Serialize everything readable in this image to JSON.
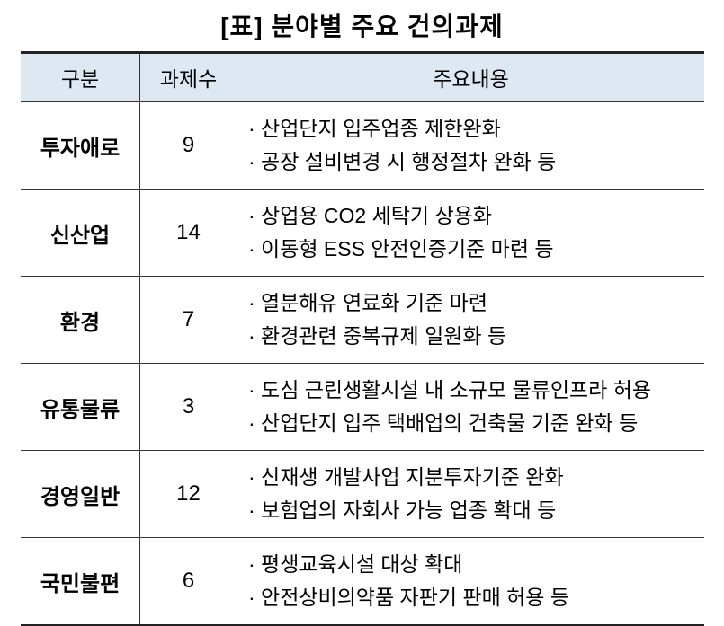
{
  "title": "[표] 분야별 주요 건의과제",
  "headers": [
    "구분",
    "과제수",
    "주요내용"
  ],
  "rows": [
    {
      "category": "투자애로",
      "count": "9",
      "items": [
        "· 산업단지 입주업종 제한완화",
        "· 공장 설비변경 시 행정절차 완화 등"
      ]
    },
    {
      "category": "신산업",
      "count": "14",
      "items": [
        "· 상업용 CO2 세탁기 상용화",
        "· 이동형 ESS 안전인증기준 마련 등"
      ]
    },
    {
      "category": "환경",
      "count": "7",
      "items": [
        "· 열분해유 연료화 기준 마련",
        "· 환경관련 중복규제 일원화 등"
      ]
    },
    {
      "category": "유통물류",
      "count": "3",
      "items": [
        "· 도심 근린생활시설 내 소규모 물류인프라 허용",
        "· 산업단지 입주 택배업의 건축물 기준 완화 등"
      ]
    },
    {
      "category": "경영일반",
      "count": "12",
      "items": [
        "· 신재생 개발사업 지분투자기준 완화",
        "· 보험업의 자회사 가능 업종 확대 등"
      ]
    },
    {
      "category": "국민불편",
      "count": "6",
      "items": [
        "· 평생교육시설 대상 확대",
        "· 안전상비의약품 자판기 판매 허용 등"
      ]
    }
  ],
  "colors": {
    "header_bg": "#dde8f3"
  }
}
